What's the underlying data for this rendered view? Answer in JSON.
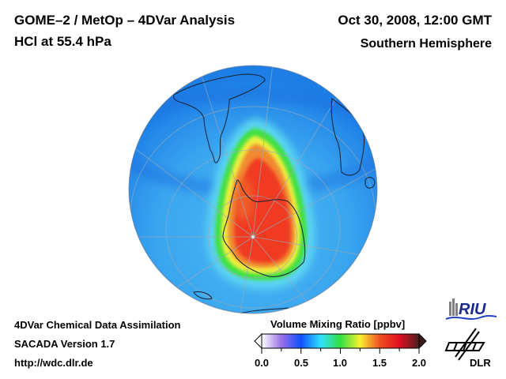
{
  "header": {
    "title_line1": "GOME–2 / MetOp – 4DVar Analysis",
    "title_line2": "HCl at 55.4 hPa",
    "date": "Oct 30, 2008, 12:00 GMT",
    "region": "Southern Hemisphere"
  },
  "footer": {
    "line1": "4DVar Chemical Data Assimilation",
    "line2": "SACADA Version 1.7",
    "line3": "http://wdc.dlr.de"
  },
  "map": {
    "projection": "orthographic, south polar view",
    "variable": "HCl",
    "pressure_level": "55.4 hPa",
    "feature": "high HCl region over Antarctica",
    "colors": {
      "background_low": "#1e8cf0",
      "mid": "#40c8f0",
      "green": "#40e040",
      "yellow": "#f0f040",
      "orange": "#f08030",
      "high": "#f02020"
    }
  },
  "colorbar": {
    "title": "Volume Mixing Ratio [ppbv]",
    "min": 0.0,
    "max": 2.0,
    "ticks": [
      "0.0",
      "0.5",
      "1.0",
      "1.5",
      "2.0"
    ],
    "stops": [
      "#ffffff",
      "#9a70e8",
      "#1050ff",
      "#30e0ff",
      "#30e040",
      "#f8f030",
      "#f05020",
      "#e01020",
      "#4a2020"
    ]
  },
  "logos": {
    "riu": "RIU",
    "dlr": "DLR"
  }
}
